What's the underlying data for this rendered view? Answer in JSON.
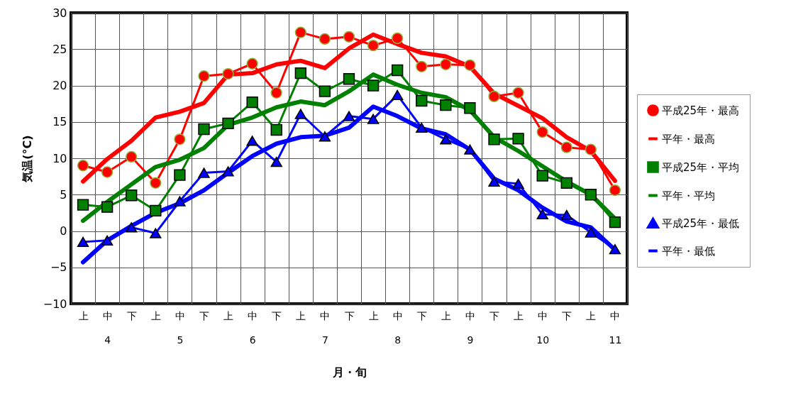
{
  "chart_data": {
    "type": "line",
    "xlabel": "月・旬",
    "ylabel": "気温(°C)",
    "categories": [
      "上",
      "中\n4",
      "下",
      "上",
      "中\n5",
      "下",
      "上",
      "中\n6",
      "下",
      "上",
      "中\n7",
      "下",
      "上",
      "中\n8",
      "下",
      "上",
      "中\n9",
      "下",
      "上",
      "中\n10",
      "下",
      "上",
      "中\n11"
    ],
    "ylim": [
      -10,
      30
    ],
    "yticks": [
      -10,
      -5,
      0,
      5,
      10,
      15,
      20,
      25,
      30
    ],
    "grid": true,
    "legend": "right",
    "series": [
      {
        "name": "平成25年・最高",
        "color": "#ff0000",
        "marker": "circle",
        "values": [
          9.0,
          8.1,
          10.2,
          6.6,
          12.6,
          21.3,
          21.6,
          23.0,
          19.0,
          27.3,
          26.4,
          26.7,
          25.5,
          26.5,
          22.6,
          22.9,
          22.8,
          18.5,
          19.0,
          13.6,
          11.5,
          11.2,
          5.6
        ]
      },
      {
        "name": "平年・最高",
        "color": "#ff0000",
        "marker": "none",
        "values": [
          6.8,
          9.9,
          12.4,
          15.6,
          16.4,
          17.6,
          21.5,
          21.7,
          22.9,
          23.4,
          22.4,
          25.1,
          27.0,
          25.7,
          24.5,
          24.0,
          22.6,
          18.9,
          17.2,
          15.5,
          12.9,
          11.0,
          6.9
        ]
      },
      {
        "name": "平成25年・平均",
        "color": "#008000",
        "marker": "square",
        "values": [
          3.6,
          3.3,
          4.9,
          2.8,
          7.7,
          14.0,
          14.8,
          17.7,
          13.9,
          21.7,
          19.2,
          20.9,
          20.0,
          22.1,
          17.9,
          17.3,
          16.9,
          12.6,
          12.7,
          7.6,
          6.6,
          5.0,
          1.2
        ]
      },
      {
        "name": "平年・平均",
        "color": "#008000",
        "marker": "none",
        "values": [
          1.4,
          4.0,
          6.4,
          8.8,
          9.8,
          11.4,
          14.6,
          15.6,
          17.0,
          17.8,
          17.3,
          19.2,
          21.5,
          20.1,
          19.0,
          18.4,
          16.6,
          12.9,
          11.0,
          8.9,
          6.8,
          5.0,
          1.7
        ]
      },
      {
        "name": "平成25年・最低",
        "color": "#0000ff",
        "marker": "triangle",
        "values": [
          -1.5,
          -1.3,
          0.5,
          -0.3,
          4.1,
          8.0,
          8.2,
          12.4,
          9.5,
          16.1,
          13.0,
          15.8,
          15.4,
          18.7,
          14.2,
          12.6,
          11.2,
          6.8,
          6.5,
          2.3,
          2.2,
          -0.2,
          -2.5
        ]
      },
      {
        "name": "平年・最低",
        "color": "#0000ff",
        "marker": "none",
        "values": [
          -4.3,
          -1.3,
          0.7,
          2.5,
          3.8,
          5.6,
          8.0,
          10.3,
          12.0,
          12.9,
          13.1,
          14.2,
          17.1,
          15.8,
          14.1,
          13.3,
          11.2,
          7.2,
          5.6,
          3.2,
          1.3,
          0.5,
          -2.6
        ]
      }
    ]
  }
}
